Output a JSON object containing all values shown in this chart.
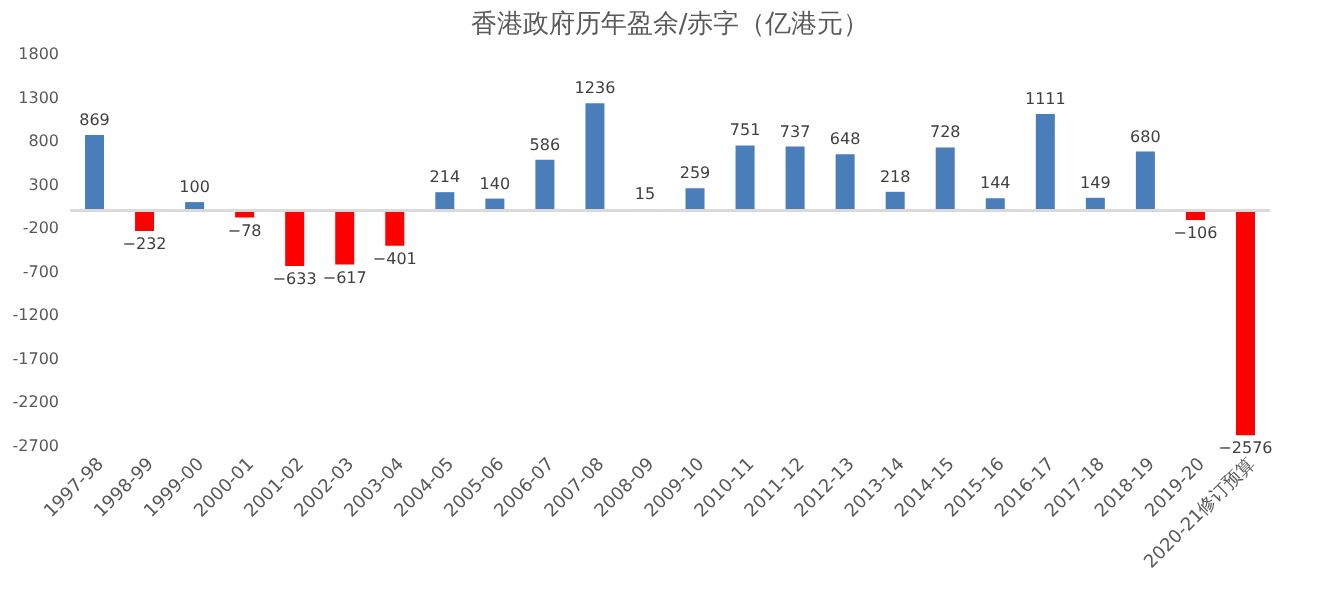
{
  "chart_data": {
    "type": "bar",
    "title": "香港政府历年盈余/赤字（亿港元）",
    "categories": [
      "1997-98",
      "1998-99",
      "1999-00",
      "2000-01",
      "2001-02",
      "2002-03",
      "2003-04",
      "2004-05",
      "2005-06",
      "2006-07",
      "2007-08",
      "2008-09",
      "2009-10",
      "2010-11",
      "2011-12",
      "2012-13",
      "2013-14",
      "2014-15",
      "2015-16",
      "2016-17",
      "2017-18",
      "2018-19",
      "2019-20",
      "2020-21修订预算"
    ],
    "values": [
      869,
      -232,
      100,
      -78,
      -633,
      -617,
      -401,
      214,
      140,
      586,
      1236,
      15,
      259,
      751,
      737,
      648,
      218,
      728,
      144,
      1111,
      149,
      680,
      -106,
      -2576
    ],
    "colors": [
      "#4a7ebb",
      "#ff0000",
      "#4a7ebb",
      "#ff0000",
      "#ff0000",
      "#ff0000",
      "#ff0000",
      "#4a7ebb",
      "#4a7ebb",
      "#4a7ebb",
      "#4a7ebb",
      "#4a7ebb",
      "#4a7ebb",
      "#4a7ebb",
      "#4a7ebb",
      "#4a7ebb",
      "#4a7ebb",
      "#4a7ebb",
      "#4a7ebb",
      "#4a7ebb",
      "#4a7ebb",
      "#4a7ebb",
      "#ff0000",
      "#ff0000"
    ],
    "ylim": [
      -2700,
      1800
    ],
    "yticks": [
      -2700,
      -2200,
      -1700,
      -1200,
      -700,
      -200,
      300,
      800,
      1300,
      1800
    ],
    "data_labels": true,
    "grid": false
  }
}
